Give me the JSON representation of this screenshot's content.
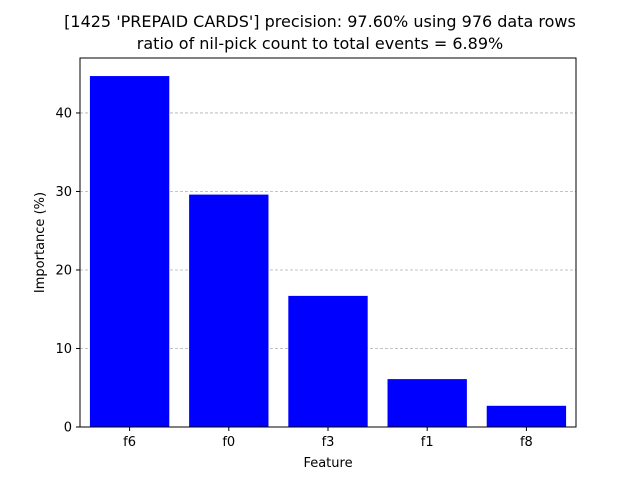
{
  "chart_data": {
    "type": "bar",
    "title_line1": "[1425 'PREPAID CARDS'] precision: 97.60% using 976 data rows",
    "title_line2": "ratio of nil-pick count to total events = 6.89%",
    "xlabel": "Feature",
    "ylabel": "Importance (%)",
    "categories": [
      "f6",
      "f0",
      "f3",
      "f1",
      "f8"
    ],
    "values": [
      44.7,
      29.6,
      16.7,
      6.1,
      2.7
    ],
    "ylim": [
      0,
      47
    ],
    "yticks": [
      0,
      10,
      20,
      30,
      40
    ],
    "grid": "y-dashed",
    "bar_color": "#0000ff",
    "grid_color": "#b0b0b0"
  }
}
